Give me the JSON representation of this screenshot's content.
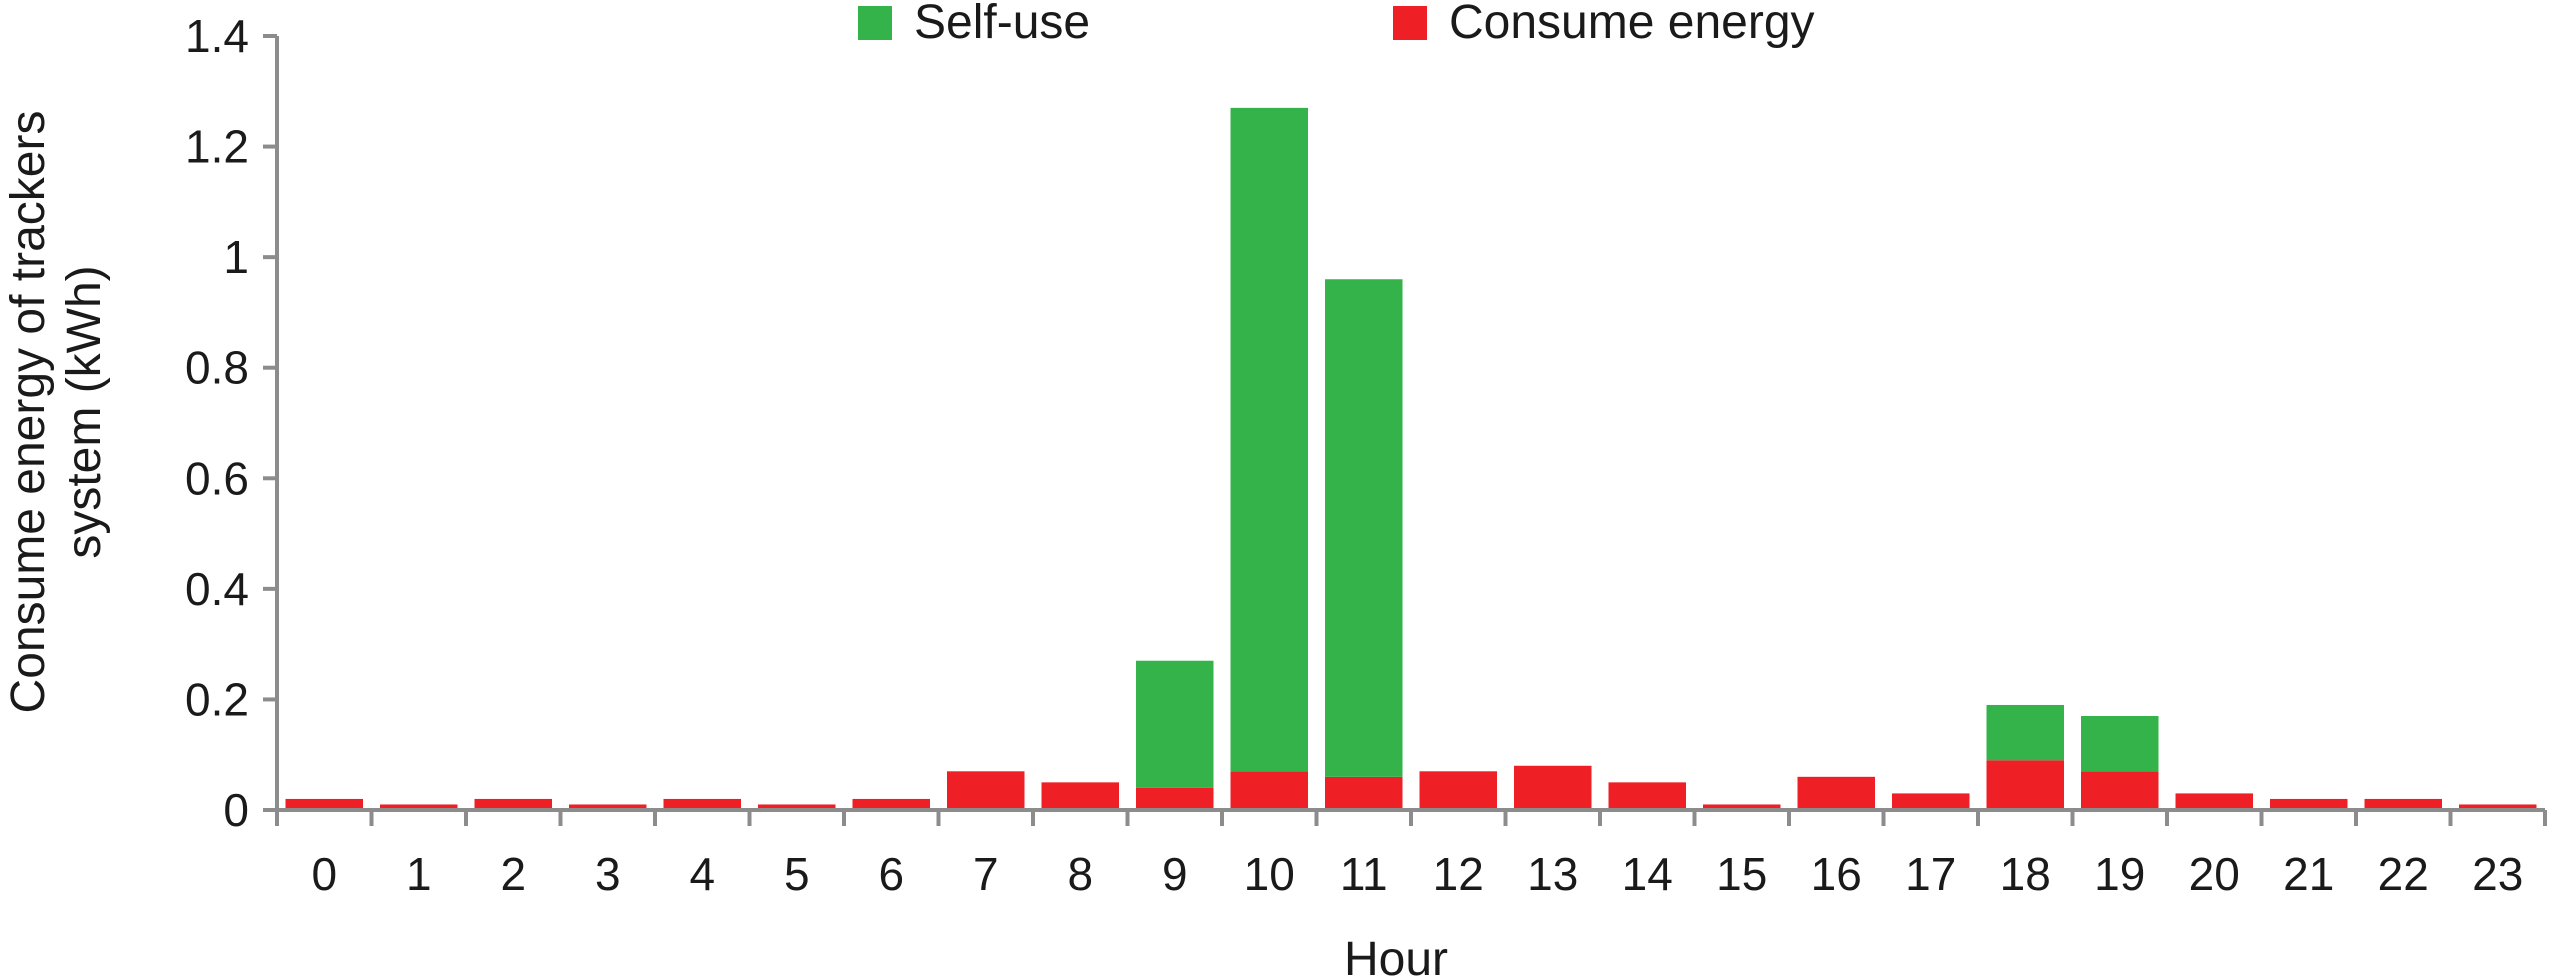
{
  "chart_data": {
    "type": "bar",
    "stacked": true,
    "categories": [
      "0",
      "1",
      "2",
      "3",
      "4",
      "5",
      "6",
      "7",
      "8",
      "9",
      "10",
      "11",
      "12",
      "13",
      "14",
      "15",
      "16",
      "17",
      "18",
      "19",
      "20",
      "21",
      "22",
      "23"
    ],
    "series": [
      {
        "name": "Consume energy",
        "color": "#ee1f25",
        "values": [
          0.02,
          0.01,
          0.02,
          0.01,
          0.02,
          0.01,
          0.02,
          0.07,
          0.05,
          0.04,
          0.07,
          0.06,
          0.07,
          0.08,
          0.05,
          0.01,
          0.06,
          0.03,
          0.09,
          0.07,
          0.03,
          0.02,
          0.02,
          0.01
        ]
      },
      {
        "name": "Self-use",
        "color": "#33b34a",
        "values": [
          0,
          0,
          0,
          0,
          0,
          0,
          0,
          0,
          0,
          0.23,
          1.2,
          0.9,
          0,
          0,
          0,
          0,
          0,
          0,
          0.1,
          0.1,
          0,
          0,
          0,
          0
        ]
      }
    ],
    "xlabel": "Hour",
    "ylabel_line1": "Consume energy of trackers",
    "ylabel_line2": "system (kWh)",
    "ylim": [
      0,
      1.4
    ],
    "yticks": [
      "0",
      "0.2",
      "0.4",
      "0.6",
      "0.8",
      "1",
      "1.2",
      "1.4"
    ],
    "legend": {
      "placement": "top-center",
      "entries": [
        {
          "label": "Self-use",
          "color": "#33b34a"
        },
        {
          "label": "Consume energy",
          "color": "#ee1f25"
        }
      ]
    },
    "grid": false
  }
}
